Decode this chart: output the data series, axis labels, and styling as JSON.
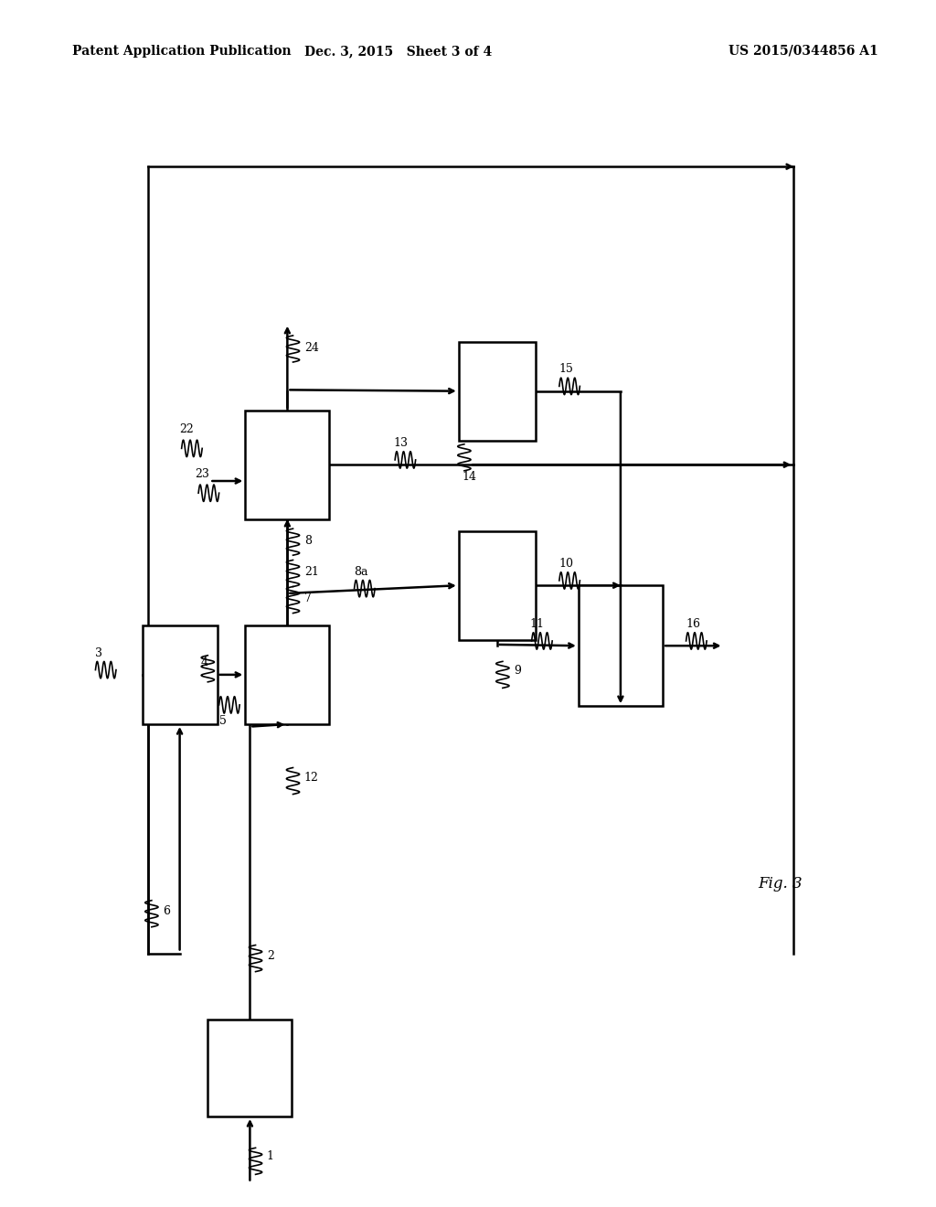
{
  "bg": "#ffffff",
  "hdr_l": "Patent Application Publication",
  "hdr_m": "Dec. 3, 2015   Sheet 3 of 4",
  "hdr_r": "US 2015/0344856 A1",
  "fig3": "Fig. 3",
  "lw": 1.8,
  "aw": 9,
  "boxes": {
    "b1": [
      0.222,
      0.075,
      0.09,
      0.08
    ],
    "bA": [
      0.152,
      0.4,
      0.08,
      0.082
    ],
    "bB": [
      0.262,
      0.4,
      0.09,
      0.082
    ],
    "bC": [
      0.262,
      0.57,
      0.09,
      0.09
    ],
    "b10": [
      0.49,
      0.47,
      0.082,
      0.09
    ],
    "b11": [
      0.618,
      0.415,
      0.09,
      0.1
    ],
    "b14": [
      0.49,
      0.635,
      0.082,
      0.082
    ]
  },
  "border": [
    0.158,
    0.21,
    0.848,
    0.862
  ]
}
